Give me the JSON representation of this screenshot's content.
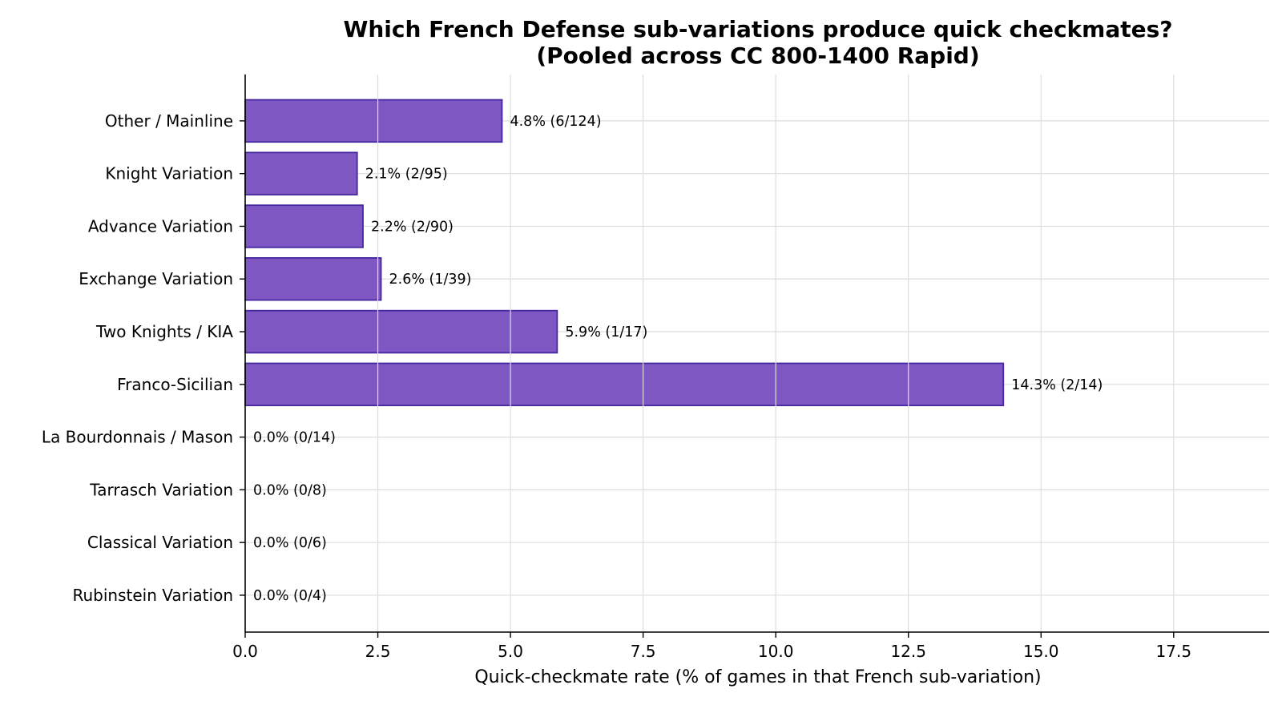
{
  "chart_data": {
    "type": "bar",
    "orientation": "horizontal",
    "title": "Which French Defense sub-variations produce quick checkmates?",
    "subtitle": "(Pooled across CC 800-1400 Rapid)",
    "xlabel": "Quick-checkmate rate (% of games in that French sub-variation)",
    "ylabel": "",
    "xlim": [
      0,
      19.3
    ],
    "xticks": [
      "0.0",
      "2.5",
      "5.0",
      "7.5",
      "10.0",
      "12.5",
      "15.0",
      "17.5"
    ],
    "xtick_values": [
      0,
      2.5,
      5,
      7.5,
      10,
      12.5,
      15,
      17.5
    ],
    "grid": true,
    "bar_color": "#7e57c2",
    "bar_edge_color": "#4527a0",
    "categories": [
      "Other / Mainline",
      "Knight Variation",
      "Advance Variation",
      "Exchange Variation",
      "Two Knights / KIA",
      "Franco-Sicilian",
      "La Bourdonnais / Mason",
      "Tarrasch Variation",
      "Classical Variation",
      "Rubinstein Variation"
    ],
    "values": [
      4.84,
      2.11,
      2.22,
      2.56,
      5.88,
      14.29,
      0.0,
      0.0,
      0.0,
      0.0
    ],
    "labels": [
      "4.8%  (6/124)",
      "2.1%  (2/95)",
      "2.2%  (2/90)",
      "2.6%  (1/39)",
      "5.9%  (1/17)",
      "14.3%  (2/14)",
      "0.0%  (0/14)",
      "0.0%  (0/8)",
      "0.0%  (0/6)",
      "0.0%  (0/4)"
    ]
  }
}
